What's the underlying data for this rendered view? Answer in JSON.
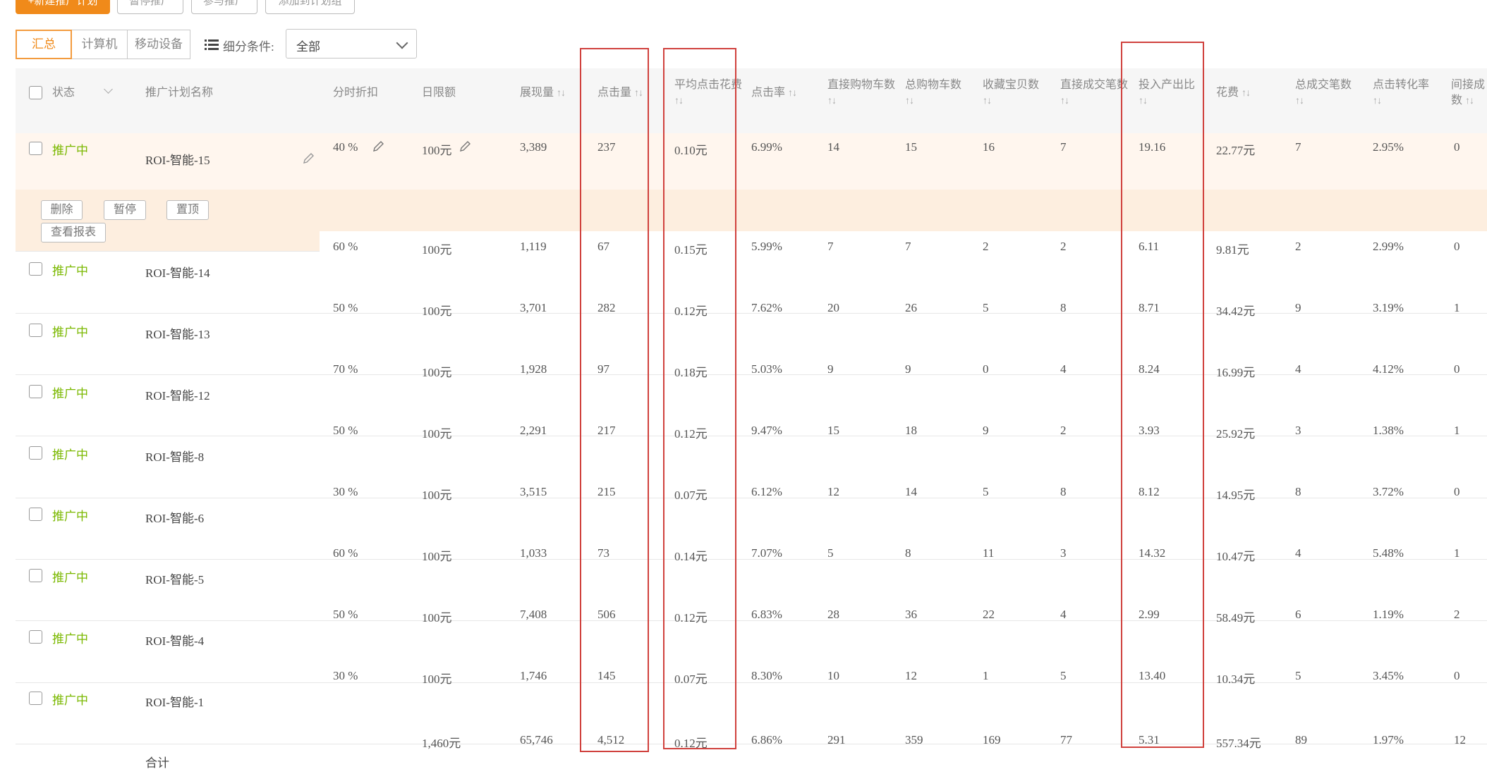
{
  "toolbar": {
    "buttons": [
      "+新建推广计划",
      "暂停推广",
      "参与推广",
      "添加到计划组"
    ]
  },
  "view_tabs": [
    "汇总",
    "计算机",
    "移动设备"
  ],
  "filter": {
    "label": "细分条件:",
    "value": "全部"
  },
  "columns": {
    "status": "状态",
    "name": "推广计划名称",
    "discount": "分时折扣",
    "budget": "日限额",
    "impressions": "展现量",
    "clicks": "点击量",
    "avg_cpc": "平均点击花费",
    "ctr": "点击率",
    "direct_cart": "直接购物车数",
    "total_cart": "总购物车数",
    "fav": "收藏宝贝数",
    "direct_deals": "直接成交笔数",
    "roi": "投入产出比",
    "spend": "花费",
    "total_deals": "总成交笔数",
    "cvr": "点击转化率",
    "indirect_line1": "间接成",
    "indirect_line2": "数"
  },
  "row_actions": [
    "删除",
    "暂停",
    "置顶",
    "查看报表"
  ],
  "rows": [
    {
      "status": "推广中",
      "name": "ROI-智能-15",
      "discount": "40 %",
      "budget": "100元",
      "impressions": "3,389",
      "clicks": "237",
      "avg_cpc": "0.10元",
      "ctr": "6.99%",
      "direct_cart": "14",
      "total_cart": "15",
      "fav": "16",
      "direct_deals": "7",
      "roi": "19.16",
      "spend": "22.77元",
      "total_deals": "7",
      "cvr": "2.95%",
      "indirect": "0"
    },
    {
      "status": "推广中",
      "name": "ROI-智能-14",
      "discount": "60 %",
      "budget": "100元",
      "impressions": "1,119",
      "clicks": "67",
      "avg_cpc": "0.15元",
      "ctr": "5.99%",
      "direct_cart": "7",
      "total_cart": "7",
      "fav": "2",
      "direct_deals": "2",
      "roi": "6.11",
      "spend": "9.81元",
      "total_deals": "2",
      "cvr": "2.99%",
      "indirect": "0"
    },
    {
      "status": "推广中",
      "name": "ROI-智能-13",
      "discount": "50 %",
      "budget": "100元",
      "impressions": "3,701",
      "clicks": "282",
      "avg_cpc": "0.12元",
      "ctr": "7.62%",
      "direct_cart": "20",
      "total_cart": "26",
      "fav": "5",
      "direct_deals": "8",
      "roi": "8.71",
      "spend": "34.42元",
      "total_deals": "9",
      "cvr": "3.19%",
      "indirect": "1"
    },
    {
      "status": "推广中",
      "name": "ROI-智能-12",
      "discount": "70 %",
      "budget": "100元",
      "impressions": "1,928",
      "clicks": "97",
      "avg_cpc": "0.18元",
      "ctr": "5.03%",
      "direct_cart": "9",
      "total_cart": "9",
      "fav": "0",
      "direct_deals": "4",
      "roi": "8.24",
      "spend": "16.99元",
      "total_deals": "4",
      "cvr": "4.12%",
      "indirect": "0"
    },
    {
      "status": "推广中",
      "name": "ROI-智能-8",
      "discount": "50 %",
      "budget": "100元",
      "impressions": "2,291",
      "clicks": "217",
      "avg_cpc": "0.12元",
      "ctr": "9.47%",
      "direct_cart": "15",
      "total_cart": "18",
      "fav": "9",
      "direct_deals": "2",
      "roi": "3.93",
      "spend": "25.92元",
      "total_deals": "3",
      "cvr": "1.38%",
      "indirect": "1"
    },
    {
      "status": "推广中",
      "name": "ROI-智能-6",
      "discount": "30 %",
      "budget": "100元",
      "impressions": "3,515",
      "clicks": "215",
      "avg_cpc": "0.07元",
      "ctr": "6.12%",
      "direct_cart": "12",
      "total_cart": "14",
      "fav": "5",
      "direct_deals": "8",
      "roi": "8.12",
      "spend": "14.95元",
      "total_deals": "8",
      "cvr": "3.72%",
      "indirect": "0"
    },
    {
      "status": "推广中",
      "name": "ROI-智能-5",
      "discount": "60 %",
      "budget": "100元",
      "impressions": "1,033",
      "clicks": "73",
      "avg_cpc": "0.14元",
      "ctr": "7.07%",
      "direct_cart": "5",
      "total_cart": "8",
      "fav": "11",
      "direct_deals": "3",
      "roi": "14.32",
      "spend": "10.47元",
      "total_deals": "4",
      "cvr": "5.48%",
      "indirect": "1"
    },
    {
      "status": "推广中",
      "name": "ROI-智能-4",
      "discount": "50 %",
      "budget": "100元",
      "impressions": "7,408",
      "clicks": "506",
      "avg_cpc": "0.12元",
      "ctr": "6.83%",
      "direct_cart": "28",
      "total_cart": "36",
      "fav": "22",
      "direct_deals": "4",
      "roi": "2.99",
      "spend": "58.49元",
      "total_deals": "6",
      "cvr": "1.19%",
      "indirect": "2"
    },
    {
      "status": "推广中",
      "name": "ROI-智能-1",
      "discount": "30 %",
      "budget": "100元",
      "impressions": "1,746",
      "clicks": "145",
      "avg_cpc": "0.07元",
      "ctr": "8.30%",
      "direct_cart": "10",
      "total_cart": "12",
      "fav": "1",
      "direct_deals": "5",
      "roi": "13.40",
      "spend": "10.34元",
      "total_deals": "5",
      "cvr": "3.45%",
      "indirect": "0"
    }
  ],
  "total": {
    "label": "合计",
    "budget": "1,460元",
    "impressions": "65,746",
    "clicks": "4,512",
    "avg_cpc": "0.12元",
    "ctr": "6.86%",
    "direct_cart": "291",
    "total_cart": "359",
    "fav": "169",
    "direct_deals": "77",
    "roi": "5.31",
    "spend": "557.34元",
    "total_deals": "89",
    "cvr": "1.97%",
    "indirect": "12"
  },
  "colors": {
    "accent": "#f08a1a",
    "status_active": "#7ab800",
    "highlight_box": "#d0413d",
    "row_highlight": "#fff6ee"
  },
  "icons": [
    "list-filter-icon",
    "chevron-down-icon",
    "pencil-icon",
    "sort-icon"
  ]
}
